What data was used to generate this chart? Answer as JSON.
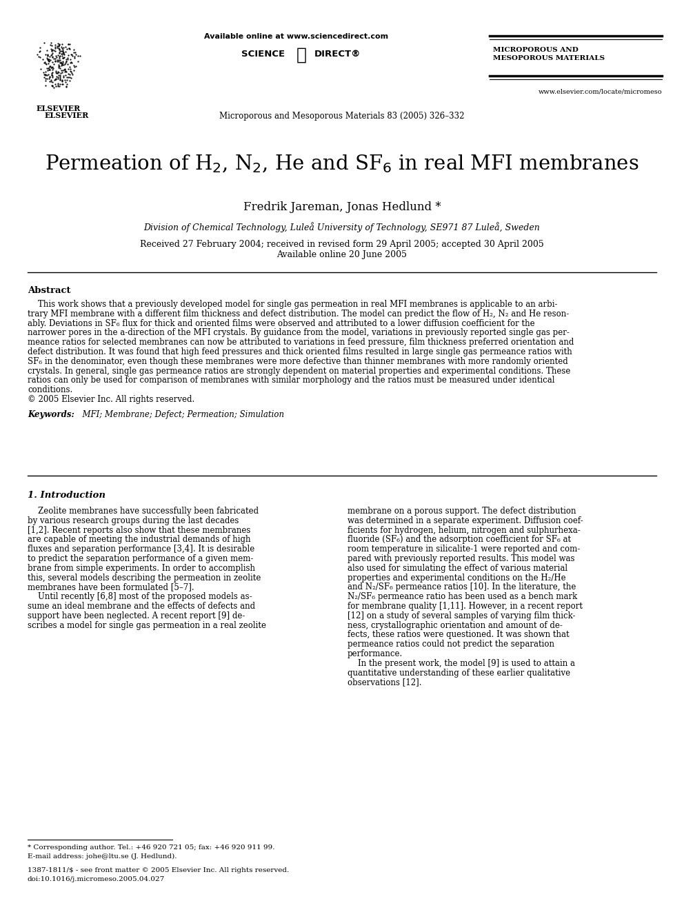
{
  "bg_color": "#ffffff",
  "title": "Permeation of H$_2$, N$_2$, He and SF$_6$ in real MFI membranes",
  "authors": "Fredrik Jareman, Jonas Hedlund *",
  "affiliation": "Division of Chemical Technology, Luleå University of Technology, SE971 87 Luleå, Sweden",
  "received": "Received 27 February 2004; received in revised form 29 April 2005; accepted 30 April 2005",
  "available": "Available online 20 June 2005",
  "journal_header": "Microporous and Mesoporous Materials 83 (2005) 326–332",
  "online_text": "Available online at www.sciencedirect.com",
  "journal_name_right": "MICROPOROUS AND\nMESOPOROUS MATERIALS",
  "website": "www.elsevier.com/locate/micromeso",
  "abstract_title": "Abstract",
  "keywords_label": "Keywords:",
  "keywords_text": "MFI; Membrane; Defect; Permeation; Simulation",
  "section1_title": "1. Introduction",
  "footnote1": "* Corresponding author. Tel.: +46 920 721 05; fax: +46 920 911 99.",
  "footnote2": "E-mail address: johe@ltu.se (J. Hedlund).",
  "footnote3": "1387-1811/$ - see front matter © 2005 Elsevier Inc. All rights reserved.",
  "footnote4": "doi:10.1016/j.micromeso.2005.04.027",
  "abstract_lines": [
    "    This work shows that a previously developed model for single gas permeation in real MFI membranes is applicable to an arbi-",
    "trary MFI membrane with a different film thickness and defect distribution. The model can predict the flow of H₂, N₂ and He reson-",
    "ably. Deviations in SF₆ flux for thick and oriented films were observed and attributed to a lower diffusion coefficient for the",
    "narrower pores in the a-direction of the MFI crystals. By guidance from the model, variations in previously reported single gas per-",
    "meance ratios for selected membranes can now be attributed to variations in feed pressure, film thickness preferred orientation and",
    "defect distribution. It was found that high feed pressures and thick oriented films resulted in large single gas permeance ratios with",
    "SF₆ in the denominator, even though these membranes were more defective than thinner membranes with more randomly oriented",
    "crystals. In general, single gas permeance ratios are strongly dependent on material properties and experimental conditions. These",
    "ratios can only be used for comparison of membranes with similar morphology and the ratios must be measured under identical",
    "conditions.",
    "© 2005 Elsevier Inc. All rights reserved."
  ],
  "col1_lines": [
    "    Zeolite membranes have successfully been fabricated",
    "by various research groups during the last decades",
    "[1,2]. Recent reports also show that these membranes",
    "are capable of meeting the industrial demands of high",
    "fluxes and separation performance [3,4]. It is desirable",
    "to predict the separation performance of a given mem-",
    "brane from simple experiments. In order to accomplish",
    "this, several models describing the permeation in zeolite",
    "membranes have been formulated [5–7].",
    "    Until recently [6,8] most of the proposed models as-",
    "sume an ideal membrane and the effects of defects and",
    "support have been neglected. A recent report [9] de-",
    "scribes a model for single gas permeation in a real zeolite"
  ],
  "col2_lines": [
    "membrane on a porous support. The defect distribution",
    "was determined in a separate experiment. Diffusion coef-",
    "ficients for hydrogen, helium, nitrogen and sulphurhexa-",
    "fluoride (SF₆) and the adsorption coefficient for SF₆ at",
    "room temperature in silicalite-1 were reported and com-",
    "pared with previously reported results. This model was",
    "also used for simulating the effect of various material",
    "properties and experimental conditions on the H₂/He",
    "and N₂/SF₆ permeance ratios [10]. In the literature, the",
    "N₂/SF₆ permeance ratio has been used as a bench mark",
    "for membrane quality [1,11]. However, in a recent report",
    "[12] on a study of several samples of varying film thick-",
    "ness, crystallographic orientation and amount of de-",
    "fects, these ratios were questioned. It was shown that",
    "permeance ratios could not predict the separation",
    "performance.",
    "    In the present work, the model [9] is used to attain a",
    "quantitative understanding of these earlier qualitative",
    "observations [12]."
  ]
}
